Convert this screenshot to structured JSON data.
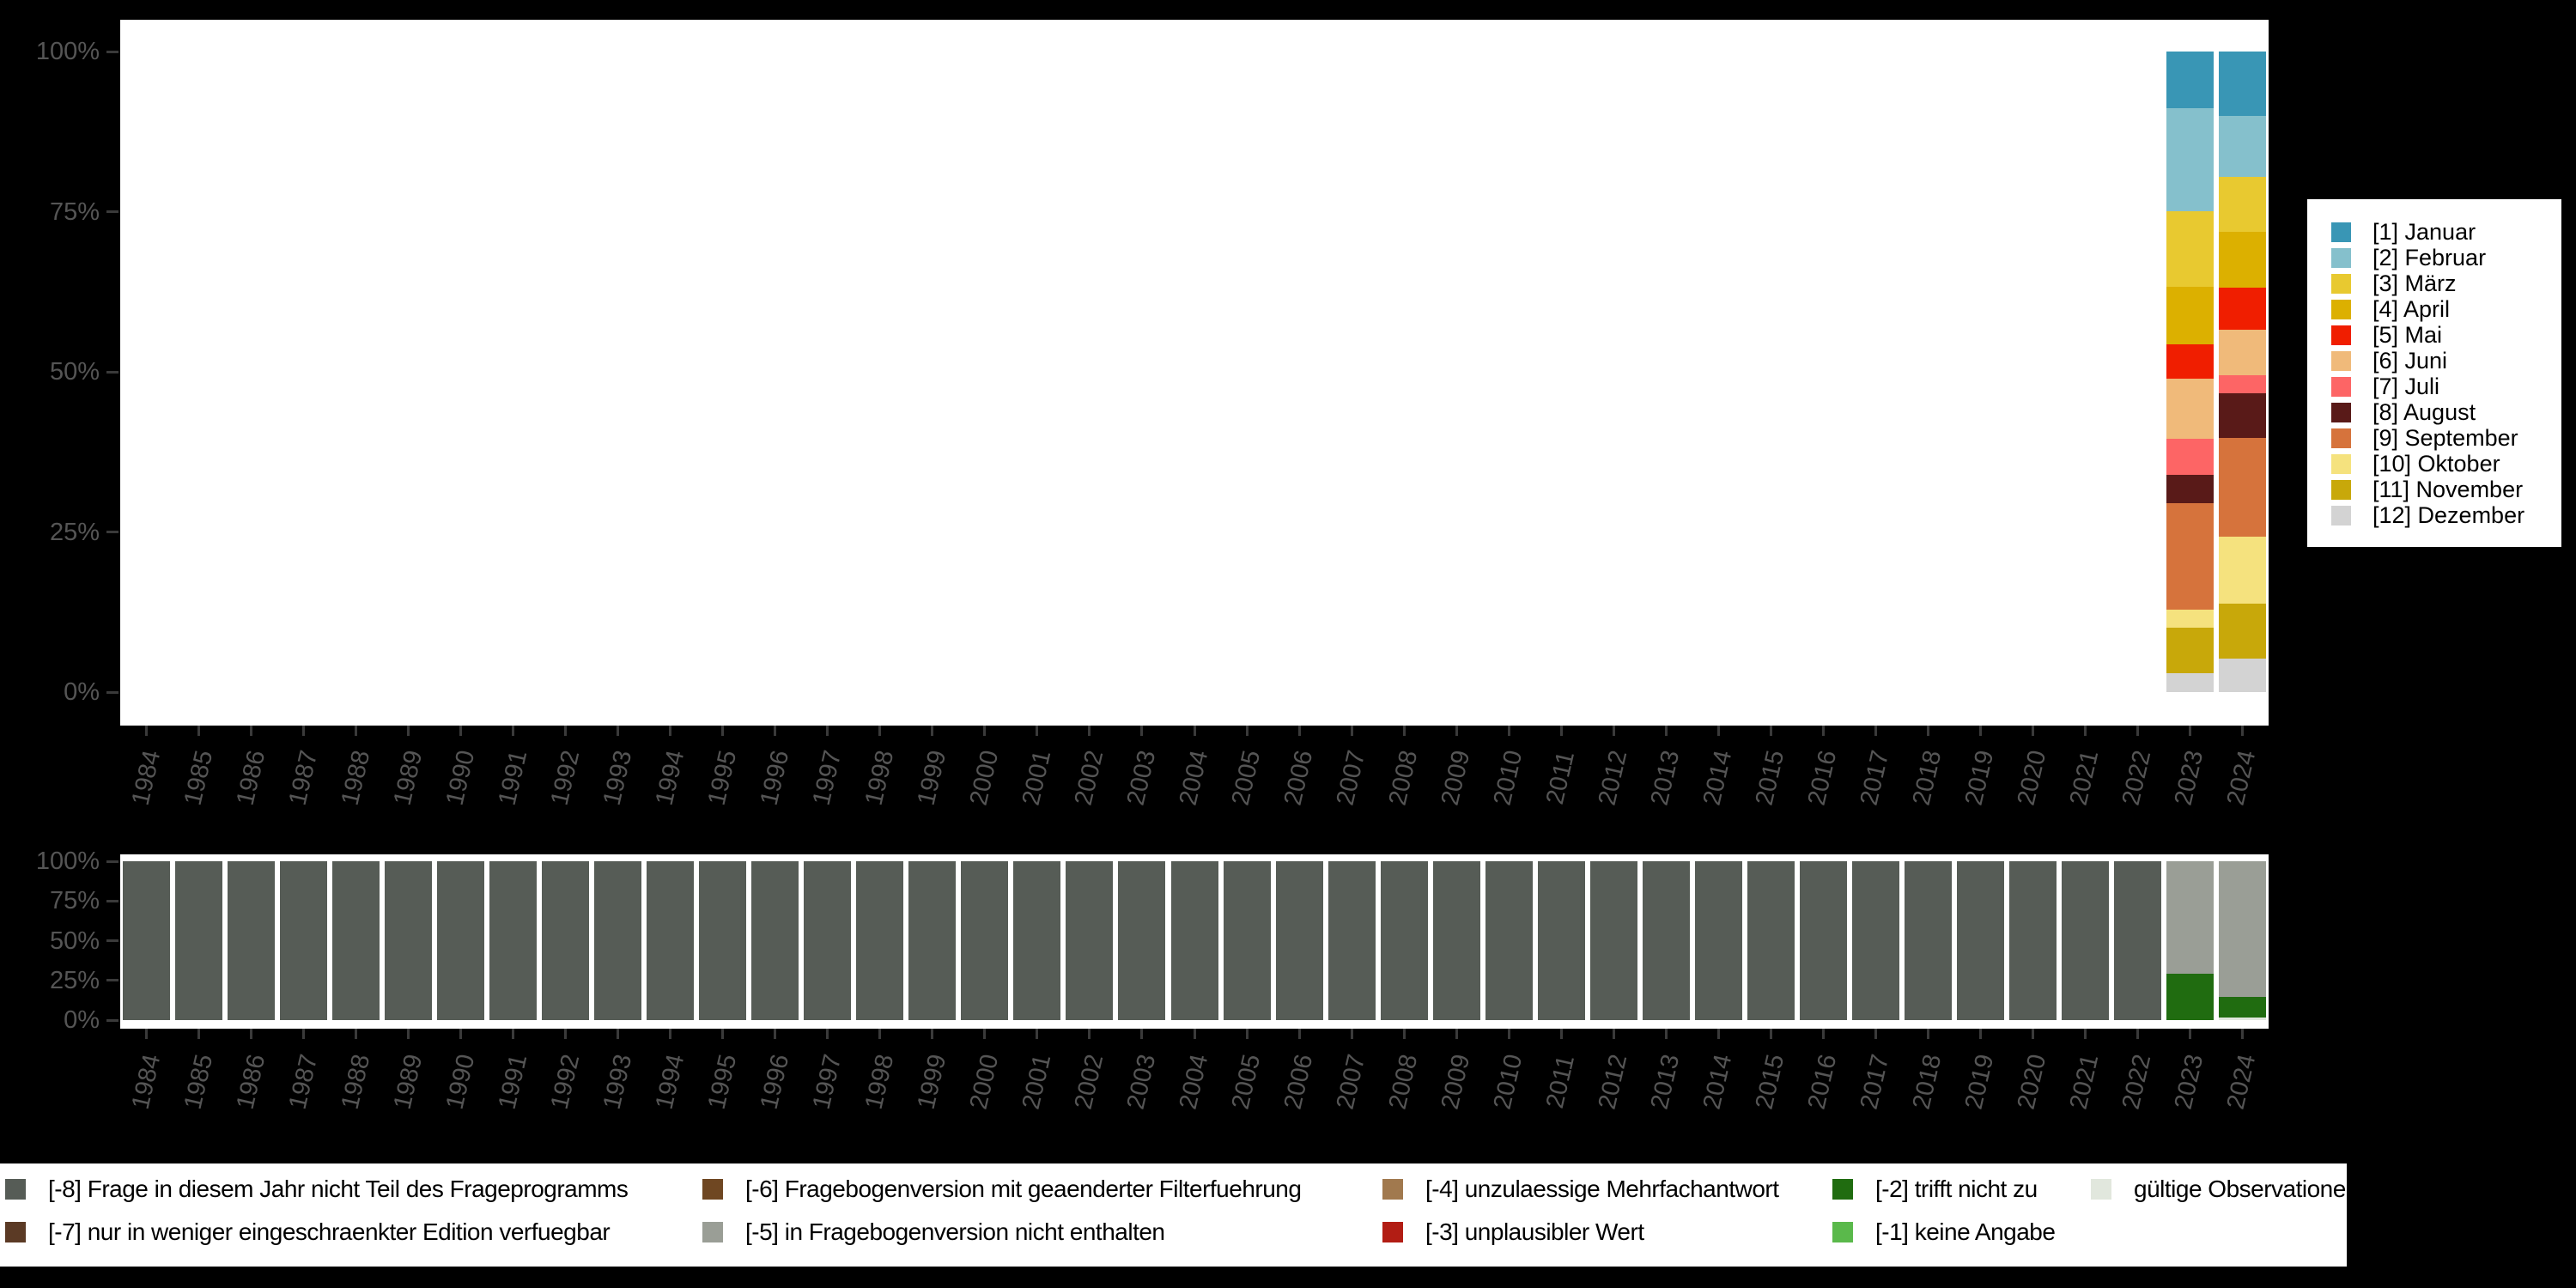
{
  "page": {
    "background": "#000000",
    "panel_background": "#ffffff",
    "axis_text_color": "#555555",
    "tick_color": "#3a3a3a"
  },
  "years": [
    "1984",
    "1985",
    "1986",
    "1987",
    "1988",
    "1989",
    "1990",
    "1991",
    "1992",
    "1993",
    "1994",
    "1995",
    "1996",
    "1997",
    "1998",
    "1999",
    "2000",
    "2001",
    "2002",
    "2003",
    "2004",
    "2005",
    "2006",
    "2007",
    "2008",
    "2009",
    "2010",
    "2011",
    "2012",
    "2013",
    "2014",
    "2015",
    "2016",
    "2017",
    "2018",
    "2019",
    "2020",
    "2021",
    "2022",
    "2023",
    "2024"
  ],
  "y_axis_ticks": [
    "100%",
    "75%",
    "50%",
    "25%",
    "0%"
  ],
  "month_legend": {
    "items": [
      {
        "label": "[1] Januar",
        "color": "#3996B5"
      },
      {
        "label": "[2] Februar",
        "color": "#85C0CC"
      },
      {
        "label": "[3] März",
        "color": "#E8C930"
      },
      {
        "label": "[4] April",
        "color": "#DCB000"
      },
      {
        "label": "[5] Mai",
        "color": "#F01E00"
      },
      {
        "label": "[6] Juni",
        "color": "#F0BA7A"
      },
      {
        "label": "[7] Juli",
        "color": "#FD6565"
      },
      {
        "label": "[8] August",
        "color": "#591A18"
      },
      {
        "label": "[9] September",
        "color": "#D6733C"
      },
      {
        "label": "[10] Oktober",
        "color": "#F5E27E"
      },
      {
        "label": "[11] November",
        "color": "#C8A80A"
      },
      {
        "label": "[12] Dezember",
        "color": "#D3D3D3"
      }
    ]
  },
  "missing_legend": {
    "columns": [
      [
        {
          "label": "[-8] Frage in diesem Jahr nicht Teil des Frageprogramms",
          "color": "#565C56"
        },
        {
          "label": "[-7] nur in weniger eingeschraenkter Edition verfuegbar",
          "color": "#5B3A25"
        }
      ],
      [
        {
          "label": "[-6] Fragebogenversion mit geaenderter Filterfuehrung",
          "color": "#6F4722"
        },
        {
          "label": "[-5] in Fragebogenversion nicht enthalten",
          "color": "#9A9E96"
        }
      ],
      [
        {
          "label": "[-4] unzulaessige Mehrfachantwort",
          "color": "#A1794E"
        },
        {
          "label": "[-3] unplausibler Wert",
          "color": "#B21D14"
        }
      ],
      [
        {
          "label": "[-2] trifft nicht zu",
          "color": "#206C10"
        },
        {
          "label": "[-1] keine Angabe",
          "color": "#5AB94B"
        }
      ],
      [
        {
          "label": "gültige Observationen",
          "color": "#E1E7DD"
        }
      ]
    ]
  },
  "chart_data": [
    {
      "type": "bar",
      "stacked": true,
      "units": "percent",
      "title": "",
      "xlabel": "",
      "ylabel": "",
      "ylim": [
        0,
        100
      ],
      "y_ticks": [
        "100%",
        "75%",
        "50%",
        "25%",
        "0%"
      ],
      "legend_position": "right",
      "grid": false,
      "categories": [
        "1984",
        "1985",
        "1986",
        "1987",
        "1988",
        "1989",
        "1990",
        "1991",
        "1992",
        "1993",
        "1994",
        "1995",
        "1996",
        "1997",
        "1998",
        "1999",
        "2000",
        "2001",
        "2002",
        "2003",
        "2004",
        "2005",
        "2006",
        "2007",
        "2008",
        "2009",
        "2010",
        "2011",
        "2012",
        "2013",
        "2014",
        "2015",
        "2016",
        "2017",
        "2018",
        "2019",
        "2020",
        "2021",
        "2022",
        "2023",
        "2024"
      ],
      "series": [
        {
          "name": "[1] Januar",
          "color": "#3996B5",
          "values_by_year": {
            "2023": 8.8,
            "2024": 10.0
          }
        },
        {
          "name": "[2] Februar",
          "color": "#85C0CC",
          "values_by_year": {
            "2023": 16.2,
            "2024": 9.6
          }
        },
        {
          "name": "[3] März",
          "color": "#E8C930",
          "values_by_year": {
            "2023": 11.7,
            "2024": 8.6
          }
        },
        {
          "name": "[4] April",
          "color": "#DCB000",
          "values_by_year": {
            "2023": 9.0,
            "2024": 8.7
          }
        },
        {
          "name": "[5] Mai",
          "color": "#F01E00",
          "values_by_year": {
            "2023": 5.4,
            "2024": 6.5
          }
        },
        {
          "name": "[6] Juni",
          "color": "#F0BA7A",
          "values_by_year": {
            "2023": 9.4,
            "2024": 7.1
          }
        },
        {
          "name": "[7] Juli",
          "color": "#FD6565",
          "values_by_year": {
            "2023": 5.6,
            "2024": 2.9
          }
        },
        {
          "name": "[8] August",
          "color": "#591A18",
          "values_by_year": {
            "2023": 4.4,
            "2024": 6.9
          }
        },
        {
          "name": "[9] September",
          "color": "#D6733C",
          "values_by_year": {
            "2023": 16.7,
            "2024": 15.5
          }
        },
        {
          "name": "[10] Oktober",
          "color": "#F5E27E",
          "values_by_year": {
            "2023": 2.7,
            "2024": 10.4
          }
        },
        {
          "name": "[11] November",
          "color": "#C8A80A",
          "values_by_year": {
            "2023": 7.2,
            "2024": 8.6
          }
        },
        {
          "name": "[12] Dezember",
          "color": "#D3D3D3",
          "values_by_year": {
            "2023": 2.9,
            "2024": 5.2
          }
        }
      ]
    },
    {
      "type": "bar",
      "stacked": true,
      "units": "percent",
      "title": "",
      "xlabel": "",
      "ylabel": "",
      "ylim": [
        0,
        100
      ],
      "y_ticks": [
        "100%",
        "75%",
        "50%",
        "25%",
        "0%"
      ],
      "legend_position": "bottom",
      "grid": false,
      "categories": [
        "1984",
        "1985",
        "1986",
        "1987",
        "1988",
        "1989",
        "1990",
        "1991",
        "1992",
        "1993",
        "1994",
        "1995",
        "1996",
        "1997",
        "1998",
        "1999",
        "2000",
        "2001",
        "2002",
        "2003",
        "2004",
        "2005",
        "2006",
        "2007",
        "2008",
        "2009",
        "2010",
        "2011",
        "2012",
        "2013",
        "2014",
        "2015",
        "2016",
        "2017",
        "2018",
        "2019",
        "2020",
        "2021",
        "2022",
        "2023",
        "2024"
      ],
      "series": [
        {
          "name": "[-8] Frage in diesem Jahr nicht Teil des Frageprogramms",
          "color": "#565C56",
          "values_by_year": {
            "1984": 100,
            "1985": 100,
            "1986": 100,
            "1987": 100,
            "1988": 100,
            "1989": 100,
            "1990": 100,
            "1991": 100,
            "1992": 100,
            "1993": 100,
            "1994": 100,
            "1995": 100,
            "1996": 100,
            "1997": 100,
            "1998": 100,
            "1999": 100,
            "2000": 100,
            "2001": 100,
            "2002": 100,
            "2003": 100,
            "2004": 100,
            "2005": 100,
            "2006": 100,
            "2007": 100,
            "2008": 100,
            "2009": 100,
            "2010": 100,
            "2011": 100,
            "2012": 100,
            "2013": 100,
            "2014": 100,
            "2015": 100,
            "2016": 100,
            "2017": 100,
            "2018": 100,
            "2019": 100,
            "2020": 100,
            "2021": 100,
            "2022": 100
          }
        },
        {
          "name": "[-5] in Fragebogenversion nicht enthalten",
          "color": "#9A9E96",
          "values_by_year": {
            "2023": 70.8,
            "2024": 85.5
          }
        },
        {
          "name": "[-2] trifft nicht zu",
          "color": "#206C10",
          "values_by_year": {
            "2023": 29.2,
            "2024": 13.1
          }
        },
        {
          "name": "gültige Observationen",
          "color": "#E1E7DD",
          "values_by_year": {
            "2024": 1.4
          }
        }
      ]
    }
  ]
}
